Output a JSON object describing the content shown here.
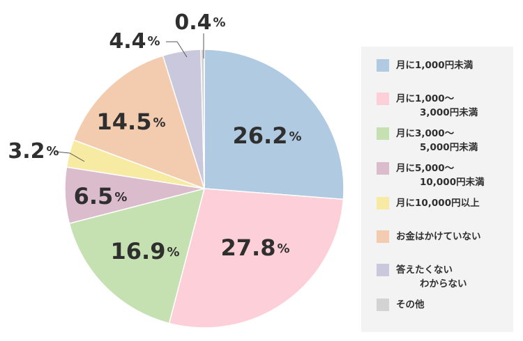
{
  "chart_data": {
    "type": "pie",
    "start_angle_deg": 0,
    "direction": "clockwise",
    "series": [
      {
        "name": "月に1,000円未満",
        "name_line2": "",
        "value": 26.2,
        "label": "26.2",
        "color": "#afcae1"
      },
      {
        "name": "月に1,000〜",
        "name_line2": "3,000円未満",
        "value": 27.8,
        "label": "27.8",
        "color": "#fdcfd8"
      },
      {
        "name": "月に3,000〜",
        "name_line2": "5,000円未満",
        "value": 16.9,
        "label": "16.9",
        "color": "#c6e1b1"
      },
      {
        "name": "月に5,000〜",
        "name_line2": "10,000円未満",
        "value": 6.5,
        "label": "6.5",
        "color": "#dbbccc"
      },
      {
        "name": "月に10,000円以上",
        "name_line2": "",
        "value": 3.2,
        "label": "3.2",
        "color": "#f7eaa3"
      },
      {
        "name": "お金はかけていない",
        "name_line2": "",
        "value": 14.5,
        "label": "14.5",
        "color": "#f3ccb0"
      },
      {
        "name": "答えたくない",
        "name_line2": "わからない",
        "value": 4.4,
        "label": "4.4",
        "color": "#cac8dd"
      },
      {
        "name": "その他",
        "name_line2": "",
        "value": 0.4,
        "label": "0.4",
        "color": "#d3d3d3"
      }
    ],
    "percent_sign": "%",
    "legend": "right"
  }
}
